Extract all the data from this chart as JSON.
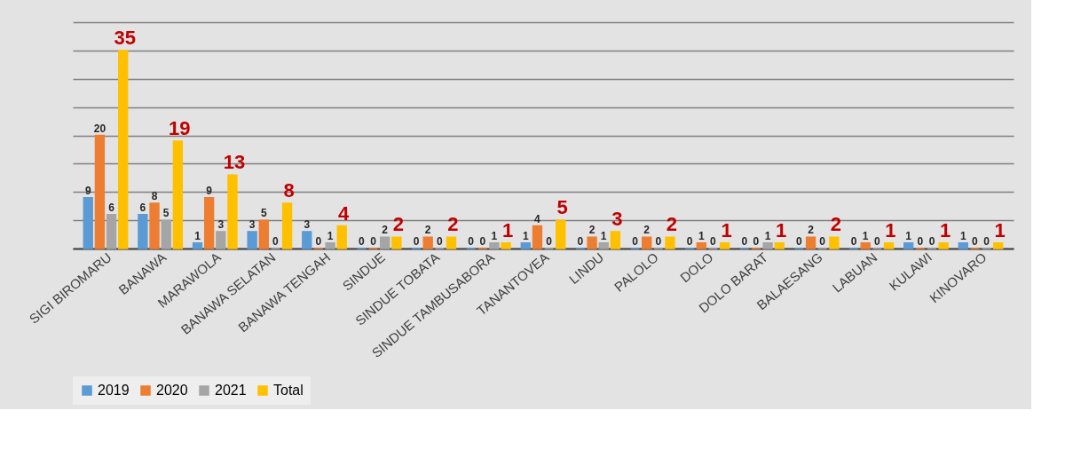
{
  "chart_data": {
    "type": "bar",
    "categories": [
      "SIGI BIROMARU",
      "BANAWA",
      "MARAWOLA",
      "BANAWA SELATAN",
      "BANAWA TENGAH",
      "SINDUE",
      "SINDUE TOBATA",
      "SINDUE TAMBUSABORA",
      "TANANTOVEA",
      "LINDU",
      "PALOLO",
      "DOLO",
      "DOLO BARAT",
      "BALAESANG",
      "LABUAN",
      "KULAWI",
      "KINOVARO"
    ],
    "series": [
      {
        "name": "2019",
        "color": "#5b9bd5",
        "values": [
          9,
          6,
          1,
          3,
          3,
          0,
          0,
          0,
          1,
          0,
          0,
          0,
          0,
          0,
          0,
          1,
          1
        ]
      },
      {
        "name": "2020",
        "color": "#ed7d31",
        "values": [
          20,
          8,
          9,
          5,
          0,
          0,
          2,
          0,
          4,
          2,
          2,
          1,
          0,
          2,
          1,
          0,
          0
        ]
      },
      {
        "name": "2021",
        "color": "#a5a5a5",
        "values": [
          6,
          5,
          3,
          0,
          1,
          2,
          0,
          1,
          0,
          1,
          0,
          0,
          1,
          0,
          0,
          0,
          0
        ]
      },
      {
        "name": "Total",
        "color": "#ffc000",
        "values": [
          35,
          19,
          13,
          8,
          4,
          2,
          2,
          1,
          5,
          3,
          2,
          1,
          1,
          2,
          1,
          1,
          1
        ]
      }
    ],
    "ylim": [
      0,
      40
    ],
    "tick_labels": "x",
    "grid": "y",
    "legend": "bottom",
    "data_labels": true
  }
}
